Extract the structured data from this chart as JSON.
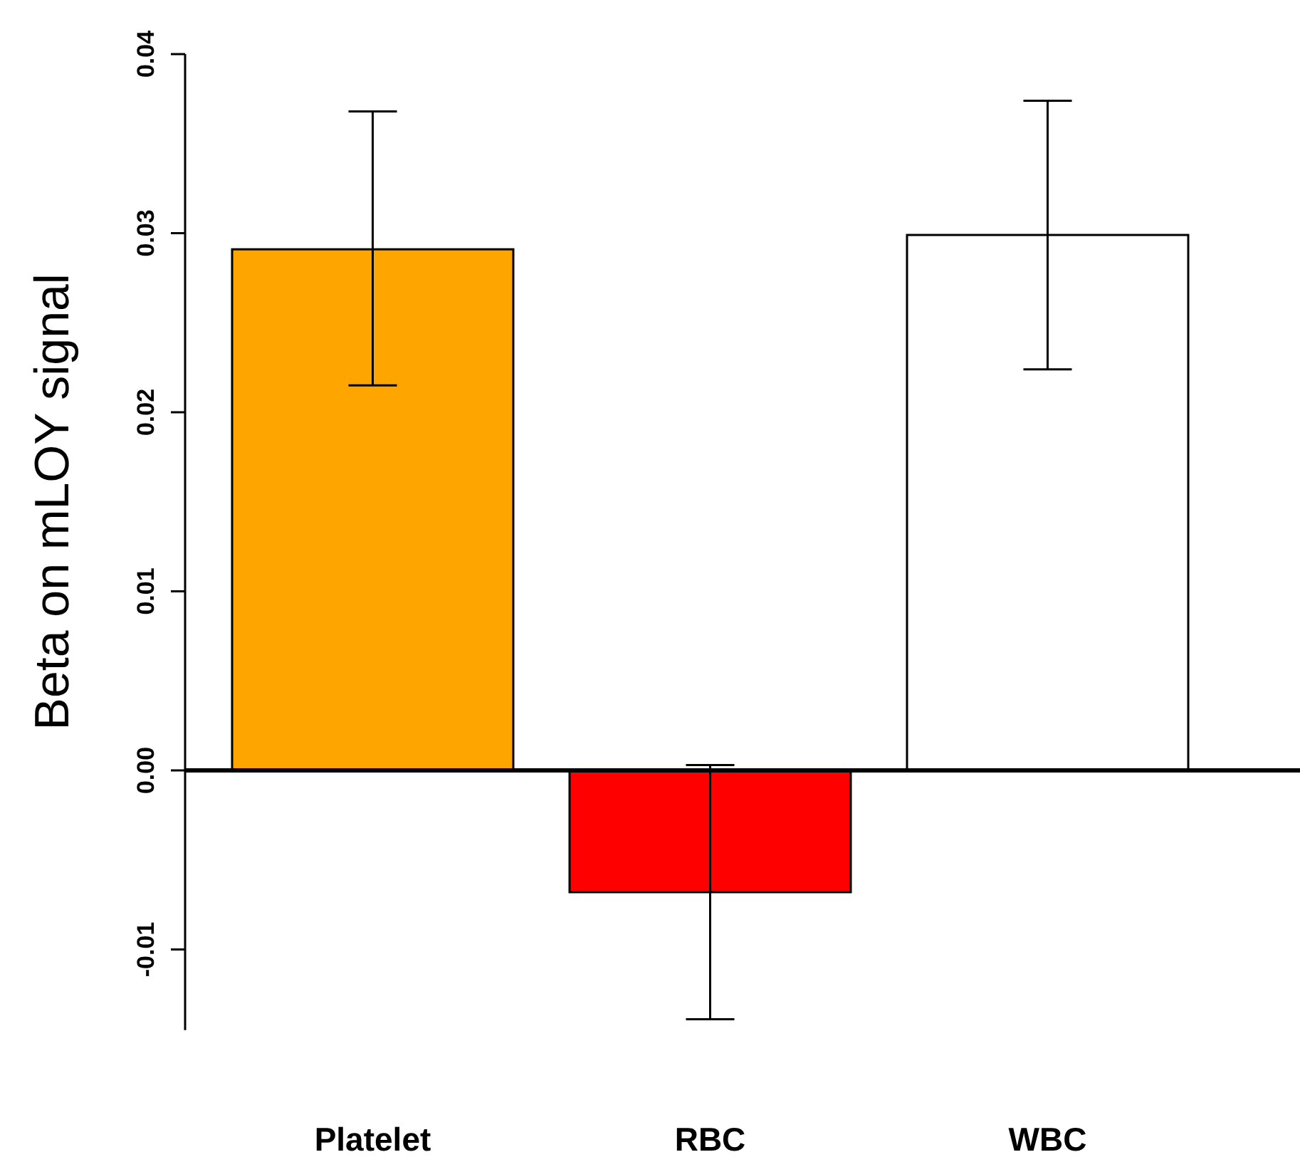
{
  "chart_data": {
    "type": "bar",
    "ylabel": "Beta on mLOY signal",
    "categories": [
      "Platelet",
      "RBC",
      "WBC"
    ],
    "values": [
      0.0291,
      -0.0068,
      0.0299
    ],
    "colors": [
      "#ffa500",
      "#ff0000",
      "#ffffff"
    ],
    "errors": [
      [
        0.0215,
        0.0368
      ],
      [
        -0.0139,
        0.0003
      ],
      [
        0.0224,
        0.0374
      ]
    ],
    "ylim": [
      -0.0145,
      0.04
    ],
    "yticks": [
      {
        "value": -0.01,
        "label": "-0.01"
      },
      {
        "value": 0,
        "label": "0.00"
      },
      {
        "value": 0.01,
        "label": "0.01"
      },
      {
        "value": 0.02,
        "label": "0.02"
      },
      {
        "value": 0.03,
        "label": "0.03"
      },
      {
        "value": 0.04,
        "label": "0.04"
      }
    ],
    "ref_lines": [
      {
        "axis": "y",
        "value": 0
      }
    ],
    "grid": false
  }
}
